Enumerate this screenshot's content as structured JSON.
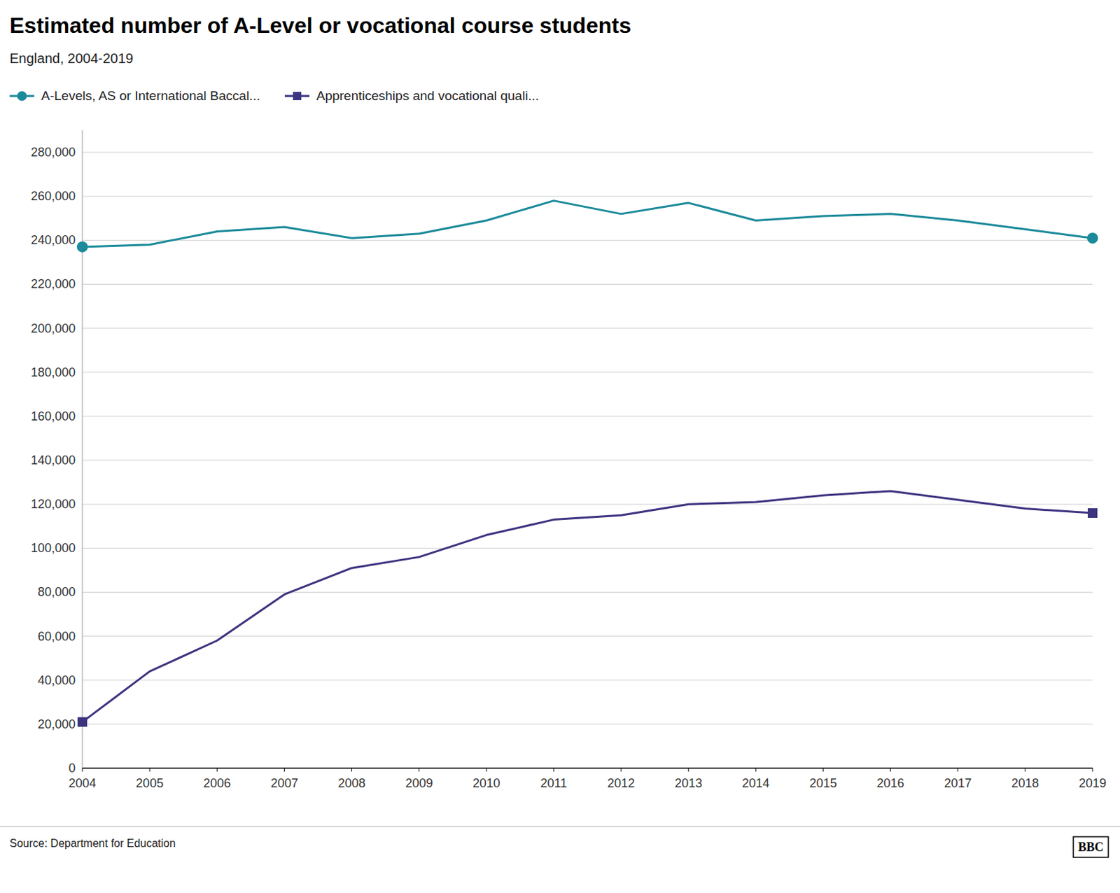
{
  "chart_data": {
    "type": "line",
    "title": "Estimated number of A-Level or vocational course students",
    "subtitle": "England, 2004-2019",
    "source": "Source: Department for Education",
    "annotations": [
      "BBC"
    ],
    "x": [
      2004,
      2005,
      2006,
      2007,
      2008,
      2009,
      2010,
      2011,
      2012,
      2013,
      2014,
      2015,
      2016,
      2017,
      2018,
      2019
    ],
    "series": [
      {
        "name": "A-Levels, AS or International Baccal...",
        "color": "#1b8a9a",
        "marker": "circle",
        "values": [
          237000,
          238000,
          244000,
          246000,
          241000,
          243000,
          249000,
          258000,
          252000,
          257000,
          249000,
          251000,
          252000,
          249000,
          245000,
          241000
        ]
      },
      {
        "name": "Apprenticeships and vocational quali...",
        "color": "#3d3480",
        "marker": "square",
        "values": [
          21000,
          44000,
          58000,
          79000,
          91000,
          96000,
          106000,
          113000,
          115000,
          120000,
          121000,
          124000,
          126000,
          122000,
          118000,
          116000
        ]
      }
    ],
    "xlim": [
      2004,
      2019
    ],
    "xticks": [
      2004,
      2005,
      2006,
      2007,
      2008,
      2009,
      2010,
      2011,
      2012,
      2013,
      2014,
      2015,
      2016,
      2017,
      2018,
      2019
    ],
    "ylim": [
      0,
      290000
    ],
    "yticks": [
      0,
      {
        "value": 20000,
        "label": "20,000"
      },
      {
        "value": 40000,
        "label": "40,000"
      },
      {
        "value": 60000,
        "label": "60,000"
      },
      {
        "value": 80000,
        "label": "80,000"
      },
      {
        "value": 100000,
        "label": "100,000"
      },
      {
        "value": 120000,
        "label": "120,000"
      },
      {
        "value": 140000,
        "label": "140,000"
      },
      {
        "value": 160000,
        "label": "160,000"
      },
      {
        "value": 180000,
        "label": "180,000"
      },
      {
        "value": 200000,
        "label": "200,000"
      },
      {
        "value": 220000,
        "label": "220,000"
      },
      {
        "value": 240000,
        "label": "240,000"
      },
      {
        "value": 260000,
        "label": "260,000"
      },
      {
        "value": 280000,
        "label": "280,000"
      }
    ],
    "grid": true,
    "legend": "top-left"
  }
}
